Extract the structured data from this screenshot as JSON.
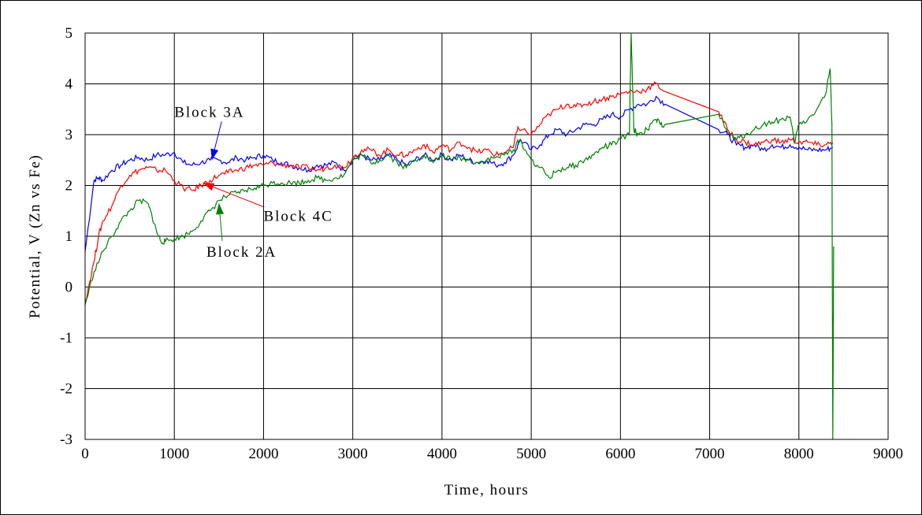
{
  "chart_data": {
    "type": "line",
    "title": "",
    "xlabel": "Time, hours",
    "ylabel": "Potential, V (Zn vs Fe)",
    "xlim": [
      0,
      9000
    ],
    "ylim": [
      -3,
      5
    ],
    "x_ticks": [
      0,
      1000,
      2000,
      3000,
      4000,
      5000,
      6000,
      7000,
      8000,
      9000
    ],
    "y_ticks": [
      -3,
      -2,
      -1,
      0,
      1,
      2,
      3,
      4,
      5
    ],
    "grid": true,
    "legend": "none",
    "series": [
      {
        "name": "Block 3A",
        "color": "#0000ff",
        "points": [
          [
            0,
            0.7
          ],
          [
            100,
            2.1
          ],
          [
            150,
            2.15
          ],
          [
            200,
            2.1
          ],
          [
            300,
            2.3
          ],
          [
            400,
            2.4
          ],
          [
            500,
            2.5
          ],
          [
            600,
            2.55
          ],
          [
            700,
            2.5
          ],
          [
            800,
            2.6
          ],
          [
            900,
            2.6
          ],
          [
            1000,
            2.65
          ],
          [
            1100,
            2.45
          ],
          [
            1200,
            2.4
          ],
          [
            1300,
            2.45
          ],
          [
            1400,
            2.5
          ],
          [
            1500,
            2.5
          ],
          [
            1600,
            2.45
          ],
          [
            1700,
            2.55
          ],
          [
            1800,
            2.5
          ],
          [
            1900,
            2.55
          ],
          [
            2000,
            2.6
          ],
          [
            2100,
            2.5
          ],
          [
            2200,
            2.45
          ],
          [
            2300,
            2.4
          ],
          [
            2400,
            2.35
          ],
          [
            2500,
            2.3
          ],
          [
            2600,
            2.4
          ],
          [
            2700,
            2.4
          ],
          [
            2800,
            2.45
          ],
          [
            2900,
            2.3
          ],
          [
            3000,
            2.5
          ],
          [
            3100,
            2.6
          ],
          [
            3200,
            2.5
          ],
          [
            3300,
            2.5
          ],
          [
            3400,
            2.6
          ],
          [
            3500,
            2.5
          ],
          [
            3600,
            2.4
          ],
          [
            3700,
            2.5
          ],
          [
            3800,
            2.6
          ],
          [
            3900,
            2.5
          ],
          [
            4000,
            2.6
          ],
          [
            4100,
            2.5
          ],
          [
            4200,
            2.6
          ],
          [
            4300,
            2.5
          ],
          [
            4400,
            2.45
          ],
          [
            4500,
            2.5
          ],
          [
            4600,
            2.4
          ],
          [
            4700,
            2.45
          ],
          [
            4800,
            2.6
          ],
          [
            4880,
            2.9
          ],
          [
            5000,
            2.7
          ],
          [
            5100,
            2.8
          ],
          [
            5200,
            3.0
          ],
          [
            5300,
            3.1
          ],
          [
            5400,
            3.0
          ],
          [
            5500,
            3.1
          ],
          [
            5600,
            3.2
          ],
          [
            5700,
            3.2
          ],
          [
            5800,
            3.3
          ],
          [
            5900,
            3.4
          ],
          [
            6000,
            3.35
          ],
          [
            6100,
            3.5
          ],
          [
            6200,
            3.6
          ],
          [
            6300,
            3.6
          ],
          [
            6400,
            3.75
          ],
          [
            6500,
            3.6
          ],
          [
            7100,
            3.1
          ],
          [
            7200,
            3.0
          ],
          [
            7300,
            2.8
          ],
          [
            7400,
            2.75
          ],
          [
            7500,
            2.8
          ],
          [
            7600,
            2.7
          ],
          [
            7700,
            2.8
          ],
          [
            7800,
            2.75
          ],
          [
            7900,
            2.8
          ],
          [
            8000,
            2.75
          ],
          [
            8100,
            2.7
          ],
          [
            8200,
            2.7
          ],
          [
            8300,
            2.7
          ],
          [
            8380,
            2.75
          ]
        ]
      },
      {
        "name": "Block 4C",
        "color": "#ff0000",
        "points": [
          [
            0,
            -0.3
          ],
          [
            100,
            0.5
          ],
          [
            150,
            1.0
          ],
          [
            200,
            1.3
          ],
          [
            300,
            1.6
          ],
          [
            400,
            2.0
          ],
          [
            500,
            2.2
          ],
          [
            600,
            2.3
          ],
          [
            700,
            2.35
          ],
          [
            800,
            2.3
          ],
          [
            900,
            2.3
          ],
          [
            1000,
            2.1
          ],
          [
            1100,
            1.95
          ],
          [
            1200,
            1.9
          ],
          [
            1300,
            2.0
          ],
          [
            1400,
            2.1
          ],
          [
            1500,
            2.2
          ],
          [
            1600,
            2.25
          ],
          [
            1700,
            2.3
          ],
          [
            1800,
            2.35
          ],
          [
            1900,
            2.4
          ],
          [
            2000,
            2.4
          ],
          [
            2100,
            2.45
          ],
          [
            2200,
            2.4
          ],
          [
            2300,
            2.4
          ],
          [
            2400,
            2.35
          ],
          [
            2500,
            2.35
          ],
          [
            2600,
            2.3
          ],
          [
            2700,
            2.35
          ],
          [
            2800,
            2.4
          ],
          [
            2900,
            2.35
          ],
          [
            3000,
            2.55
          ],
          [
            3100,
            2.7
          ],
          [
            3200,
            2.7
          ],
          [
            3300,
            2.6
          ],
          [
            3400,
            2.7
          ],
          [
            3500,
            2.6
          ],
          [
            3600,
            2.6
          ],
          [
            3700,
            2.7
          ],
          [
            3800,
            2.8
          ],
          [
            3900,
            2.65
          ],
          [
            4000,
            2.8
          ],
          [
            4100,
            2.7
          ],
          [
            4200,
            2.85
          ],
          [
            4300,
            2.75
          ],
          [
            4400,
            2.65
          ],
          [
            4500,
            2.7
          ],
          [
            4600,
            2.6
          ],
          [
            4700,
            2.65
          ],
          [
            4800,
            2.75
          ],
          [
            4850,
            3.15
          ],
          [
            5000,
            3.0
          ],
          [
            5100,
            3.2
          ],
          [
            5200,
            3.4
          ],
          [
            5300,
            3.5
          ],
          [
            5400,
            3.6
          ],
          [
            5500,
            3.55
          ],
          [
            5600,
            3.6
          ],
          [
            5700,
            3.65
          ],
          [
            5800,
            3.7
          ],
          [
            5900,
            3.75
          ],
          [
            6000,
            3.8
          ],
          [
            6100,
            3.85
          ],
          [
            6200,
            3.85
          ],
          [
            6300,
            3.9
          ],
          [
            6400,
            4.0
          ],
          [
            6500,
            3.85
          ],
          [
            7100,
            3.45
          ],
          [
            7200,
            3.1
          ],
          [
            7300,
            2.9
          ],
          [
            7400,
            2.85
          ],
          [
            7500,
            2.8
          ],
          [
            7600,
            2.85
          ],
          [
            7700,
            2.9
          ],
          [
            7800,
            2.85
          ],
          [
            7900,
            2.9
          ],
          [
            8000,
            2.85
          ],
          [
            8100,
            2.85
          ],
          [
            8200,
            2.8
          ],
          [
            8300,
            2.8
          ],
          [
            8380,
            2.85
          ]
        ]
      },
      {
        "name": "Block 2A",
        "color": "#008000",
        "points": [
          [
            0,
            -0.35
          ],
          [
            100,
            0.3
          ],
          [
            200,
            0.7
          ],
          [
            300,
            1.0
          ],
          [
            400,
            1.3
          ],
          [
            500,
            1.5
          ],
          [
            600,
            1.7
          ],
          [
            700,
            1.65
          ],
          [
            750,
            1.4
          ],
          [
            800,
            1.1
          ],
          [
            850,
            0.9
          ],
          [
            900,
            0.9
          ],
          [
            1000,
            0.95
          ],
          [
            1100,
            1.0
          ],
          [
            1200,
            1.1
          ],
          [
            1300,
            1.3
          ],
          [
            1400,
            1.5
          ],
          [
            1500,
            1.7
          ],
          [
            1600,
            1.8
          ],
          [
            1700,
            1.85
          ],
          [
            1800,
            1.9
          ],
          [
            1900,
            1.95
          ],
          [
            2000,
            2.0
          ],
          [
            2100,
            2.05
          ],
          [
            2200,
            2.05
          ],
          [
            2300,
            2.05
          ],
          [
            2400,
            2.05
          ],
          [
            2500,
            2.1
          ],
          [
            2600,
            2.15
          ],
          [
            2700,
            2.1
          ],
          [
            2800,
            2.15
          ],
          [
            2900,
            2.2
          ],
          [
            3000,
            2.5
          ],
          [
            3100,
            2.6
          ],
          [
            3200,
            2.45
          ],
          [
            3300,
            2.5
          ],
          [
            3400,
            2.6
          ],
          [
            3500,
            2.45
          ],
          [
            3600,
            2.35
          ],
          [
            3700,
            2.5
          ],
          [
            3800,
            2.6
          ],
          [
            3900,
            2.45
          ],
          [
            4000,
            2.6
          ],
          [
            4100,
            2.5
          ],
          [
            4200,
            2.55
          ],
          [
            4300,
            2.5
          ],
          [
            4400,
            2.45
          ],
          [
            4500,
            2.5
          ],
          [
            4600,
            2.55
          ],
          [
            4700,
            2.6
          ],
          [
            4800,
            2.7
          ],
          [
            4870,
            2.9
          ],
          [
            5000,
            2.5
          ],
          [
            5100,
            2.35
          ],
          [
            5200,
            2.15
          ],
          [
            5300,
            2.3
          ],
          [
            5400,
            2.35
          ],
          [
            5500,
            2.4
          ],
          [
            5600,
            2.5
          ],
          [
            5700,
            2.6
          ],
          [
            5800,
            2.75
          ],
          [
            5900,
            2.8
          ],
          [
            6000,
            2.9
          ],
          [
            6100,
            3.0
          ],
          [
            6120,
            5.0
          ],
          [
            6150,
            3.1
          ],
          [
            6200,
            3.0
          ],
          [
            6300,
            3.1
          ],
          [
            6400,
            3.3
          ],
          [
            6450,
            3.2
          ],
          [
            6500,
            3.2
          ],
          [
            7100,
            3.4
          ],
          [
            7200,
            3.05
          ],
          [
            7300,
            2.9
          ],
          [
            7400,
            3.0
          ],
          [
            7500,
            3.1
          ],
          [
            7600,
            3.2
          ],
          [
            7700,
            3.25
          ],
          [
            7800,
            3.3
          ],
          [
            7900,
            3.35
          ],
          [
            7950,
            2.85
          ],
          [
            8000,
            3.2
          ],
          [
            8100,
            3.3
          ],
          [
            8200,
            3.5
          ],
          [
            8300,
            3.8
          ],
          [
            8350,
            4.3
          ],
          [
            8370,
            3.2
          ],
          [
            8380,
            -3.0
          ],
          [
            8390,
            0.8
          ]
        ]
      }
    ],
    "annotations": [
      {
        "text": "Block 3A",
        "x": 1000,
        "y": 3.35,
        "arrow_to": [
          1420,
          2.5
        ]
      },
      {
        "text": "Block 4C",
        "x": 2000,
        "y": 1.3,
        "arrow_to": [
          1320,
          2.05
        ]
      },
      {
        "text": "Block 2A",
        "x": 1360,
        "y": 0.6,
        "arrow_to": [
          1500,
          1.65
        ]
      }
    ]
  }
}
